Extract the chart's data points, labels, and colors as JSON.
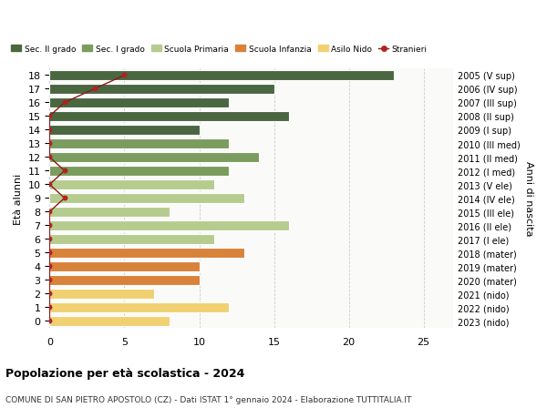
{
  "ages": [
    18,
    17,
    16,
    15,
    14,
    13,
    12,
    11,
    10,
    9,
    8,
    7,
    6,
    5,
    4,
    3,
    2,
    1,
    0
  ],
  "bar_values": [
    23,
    15,
    12,
    16,
    10,
    12,
    14,
    12,
    11,
    13,
    8,
    16,
    11,
    13,
    10,
    10,
    7,
    12,
    8
  ],
  "bar_colors": [
    "#4a6741",
    "#4a6741",
    "#4a6741",
    "#4a6741",
    "#4a6741",
    "#7a9c5e",
    "#7a9c5e",
    "#7a9c5e",
    "#b5cc8e",
    "#b5cc8e",
    "#b5cc8e",
    "#b5cc8e",
    "#b5cc8e",
    "#d9823a",
    "#d9823a",
    "#d9823a",
    "#f0d070",
    "#f0d070",
    "#f0d070"
  ],
  "right_labels": [
    "2005 (V sup)",
    "2006 (IV sup)",
    "2007 (III sup)",
    "2008 (II sup)",
    "2009 (I sup)",
    "2010 (III med)",
    "2011 (II med)",
    "2012 (I med)",
    "2013 (V ele)",
    "2014 (IV ele)",
    "2015 (III ele)",
    "2016 (II ele)",
    "2017 (I ele)",
    "2018 (mater)",
    "2019 (mater)",
    "2020 (mater)",
    "2021 (nido)",
    "2022 (nido)",
    "2023 (nido)"
  ],
  "stranieri_values": [
    5,
    3,
    1,
    0,
    0,
    0,
    0,
    1,
    0,
    1,
    0,
    0,
    0,
    0,
    0,
    0,
    0,
    0,
    0
  ],
  "legend_labels": [
    "Sec. II grado",
    "Sec. I grado",
    "Scuola Primaria",
    "Scuola Infanzia",
    "Asilo Nido",
    "Stranieri"
  ],
  "legend_colors": [
    "#4a6741",
    "#7a9c5e",
    "#b5cc8e",
    "#d9823a",
    "#f0d070",
    "#b22222"
  ],
  "ylabel_left": "Età alunni",
  "ylabel_right": "Anni di nascita",
  "title": "Popolazione per età scolastica - 2024",
  "subtitle": "COMUNE DI SAN PIETRO APOSTOLO (CZ) - Dati ISTAT 1° gennaio 2024 - Elaborazione TUTTITALIA.IT",
  "xlim": [
    0,
    27
  ],
  "background_color": "#ffffff",
  "grid_color": "#cccccc"
}
